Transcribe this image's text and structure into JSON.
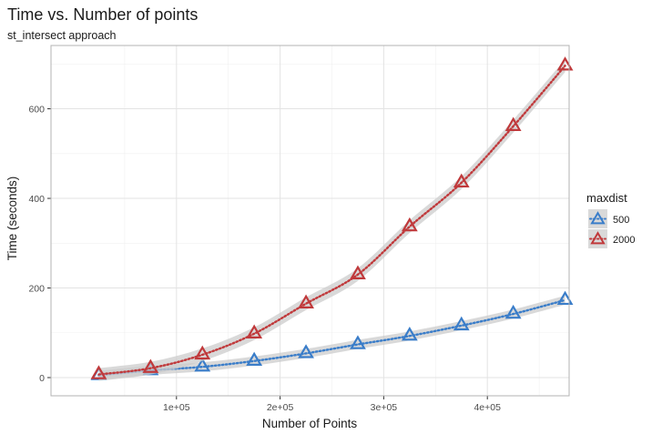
{
  "chart_data": {
    "type": "line",
    "title": "Time vs. Number of points",
    "subtitle": "st_intersect approach",
    "xlabel": "Number of Points",
    "ylabel": "Time (seconds)",
    "xlim": [
      0,
      475000
    ],
    "ylim": [
      -20,
      720
    ],
    "x_ticks": [
      100000,
      200000,
      300000,
      400000
    ],
    "x_tick_labels": [
      "1e+05",
      "2e+05",
      "3e+05",
      "4e+05"
    ],
    "y_ticks": [
      0,
      200,
      400,
      600
    ],
    "y_tick_labels": [
      "0",
      "200",
      "400",
      "600"
    ],
    "grid": true,
    "legend": {
      "title": "maxdist",
      "position": "right"
    },
    "x": [
      25000,
      75000,
      125000,
      175000,
      225000,
      275000,
      325000,
      375000,
      425000,
      475000
    ],
    "series": [
      {
        "name": "500",
        "color": "#3a7dc9",
        "values": [
          5,
          16,
          24,
          37,
          54,
          74,
          93,
          116,
          142,
          173
        ]
      },
      {
        "name": "2000",
        "color": "#c0393b",
        "values": [
          7,
          21,
          51,
          98,
          165,
          230,
          337,
          435,
          561,
          696
        ]
      }
    ],
    "marker": "open-triangle",
    "smooth_band_color": "#cccccc"
  }
}
